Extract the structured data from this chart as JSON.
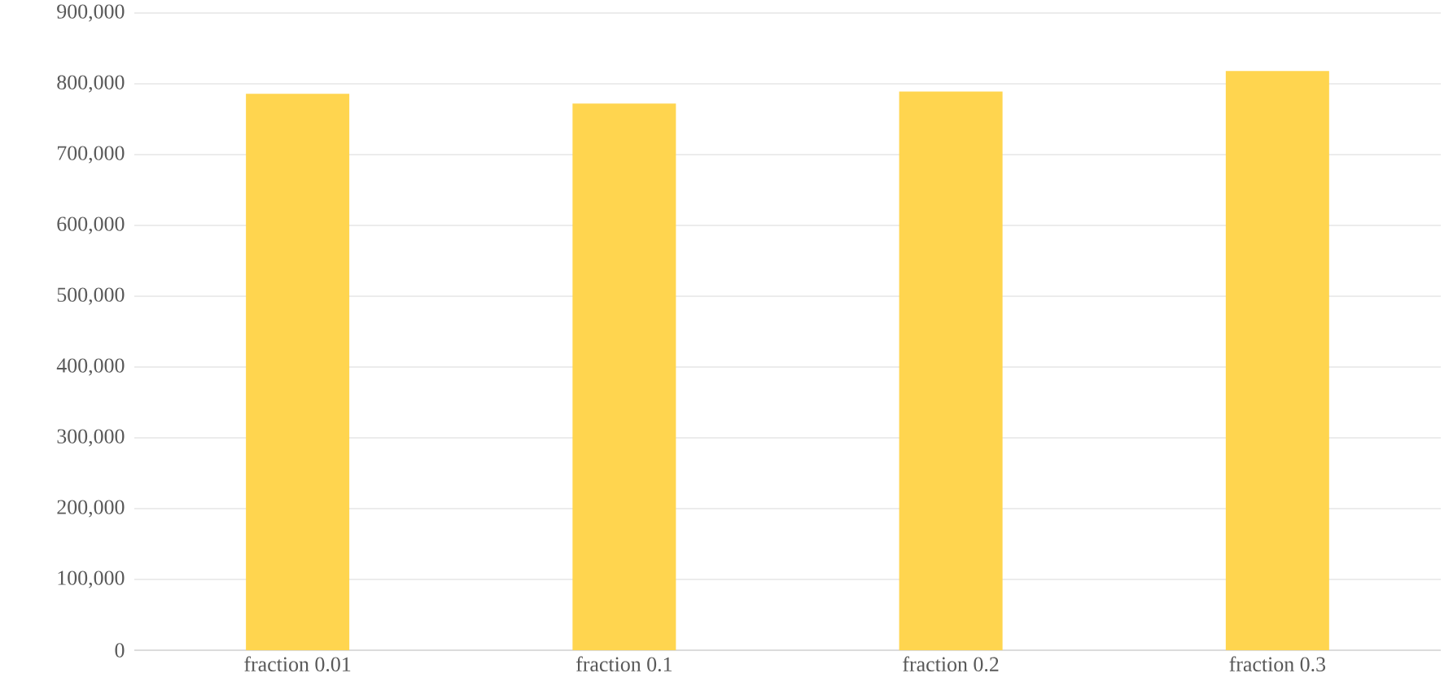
{
  "chart_data": {
    "type": "bar",
    "categories": [
      "fraction 0.01",
      "fraction 0.1",
      "fraction 0.2",
      "fraction 0.3"
    ],
    "values": [
      786000,
      772000,
      789000,
      818000
    ],
    "color": "#ffd54f",
    "ylim": [
      0,
      900000
    ],
    "yticks": [
      {
        "value": 0,
        "label": "0"
      },
      {
        "value": 100000,
        "label": "100,000"
      },
      {
        "value": 200000,
        "label": "200,000"
      },
      {
        "value": 300000,
        "label": "300,000"
      },
      {
        "value": 400000,
        "label": "400,000"
      },
      {
        "value": 500000,
        "label": "500,000"
      },
      {
        "value": 600000,
        "label": "600,000"
      },
      {
        "value": 700000,
        "label": "700,000"
      },
      {
        "value": 800000,
        "label": "800,000"
      },
      {
        "value": 900000,
        "label": "900,000"
      }
    ],
    "grid": "y"
  }
}
